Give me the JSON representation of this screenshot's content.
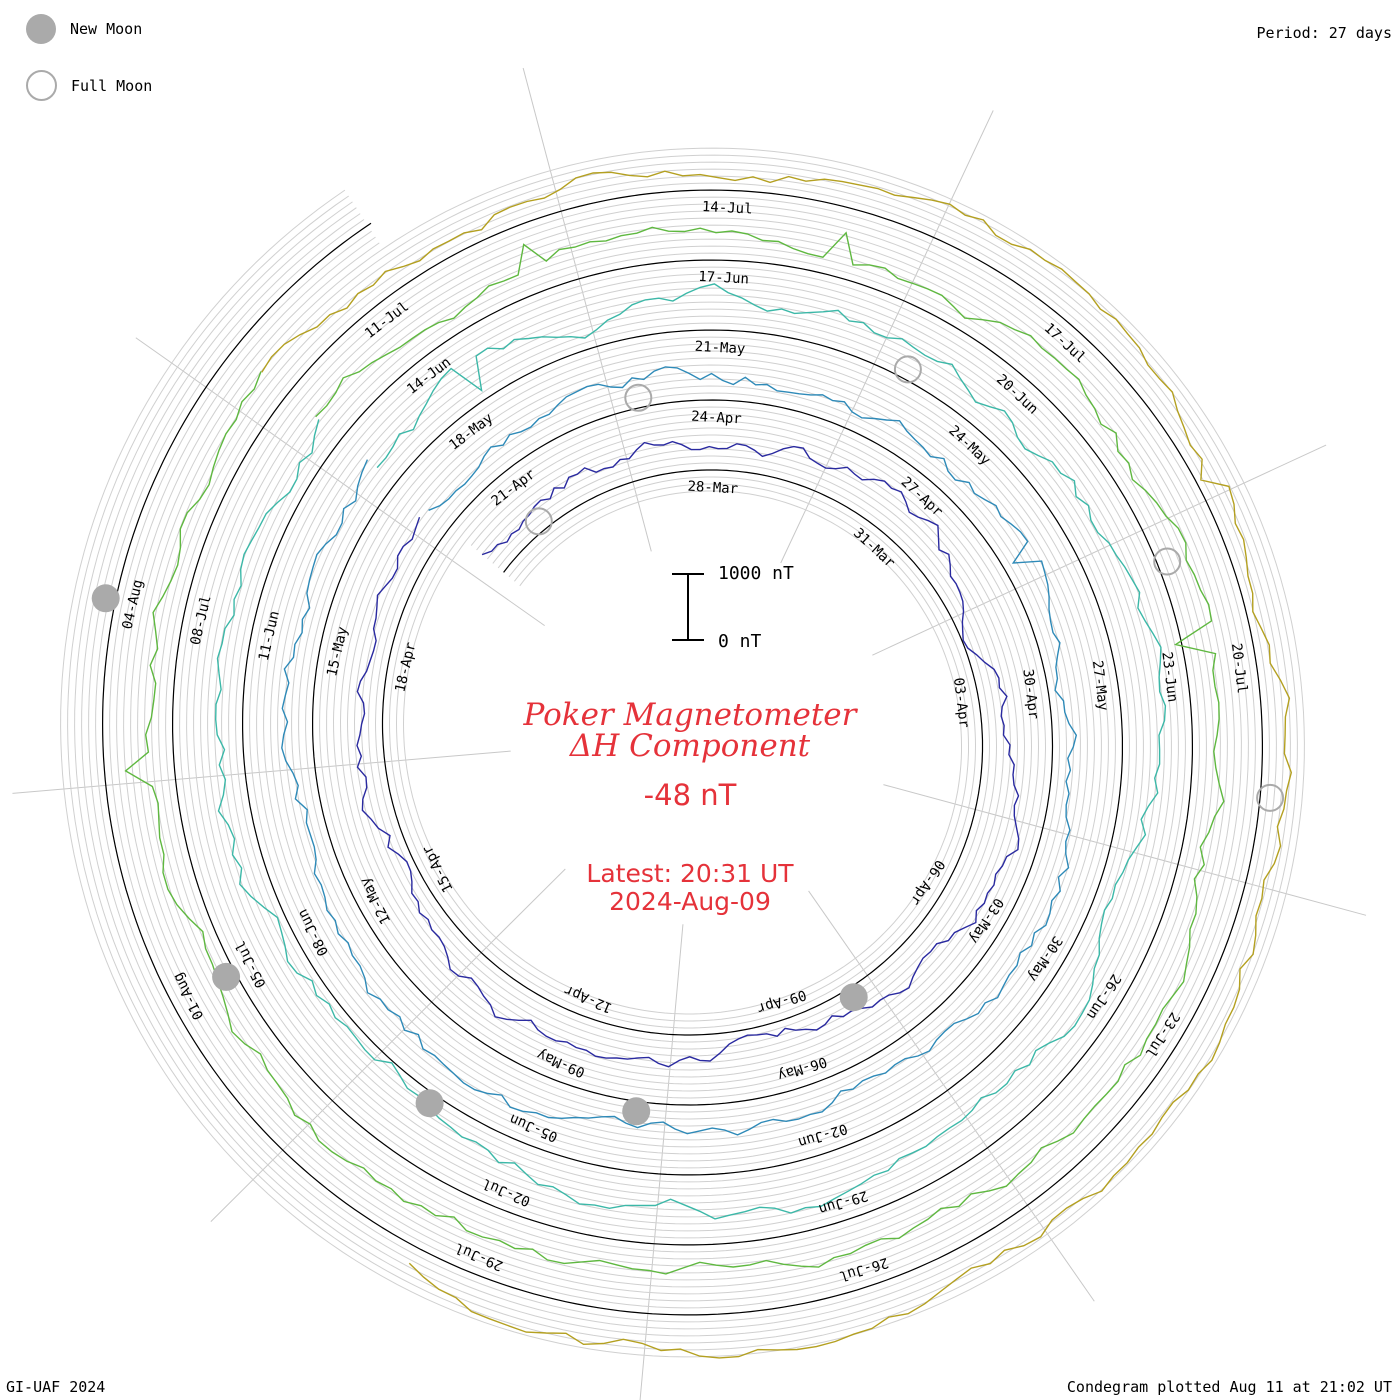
{
  "header": {
    "period": "Period: 27 days",
    "legend": {
      "new_moon": "New Moon",
      "full_moon": "Full Moon"
    }
  },
  "footer": {
    "credit": "GI-UAF 2024",
    "plotted": "Condegram plotted Aug 11 at 21:02 UT"
  },
  "center": {
    "title_line1": "Poker Magnetometer",
    "title_line2": "ΔH Component",
    "current_value": "-48 nT",
    "latest_line1": "Latest: 20:31 UT",
    "latest_line2": "2024-Aug-09"
  },
  "scale_bar": {
    "top_label": "1000 nT",
    "bottom_label": "0 nT"
  },
  "colors": {
    "title": "#e5323a",
    "moon": "#aaaaaa",
    "grid": "#c8c8c8",
    "ring_colors": [
      "#15123a",
      "#2a2aa0",
      "#2e8ab8",
      "#3cb8a8",
      "#5fb840",
      "#b4a020",
      "#c04818"
    ]
  },
  "chart_data": {
    "type": "line",
    "title": "Poker Magnetometer ΔH Component",
    "period_days": 27,
    "units": "nT",
    "current_value_nT": -48,
    "rings": [
      {
        "date_labels": [
          "28-Mar",
          "31-Mar",
          "03-Apr",
          "06-Apr",
          "09-Apr",
          "12-Apr",
          "15-Apr",
          "18-Apr",
          "21-Apr"
        ]
      },
      {
        "date_labels": [
          "24-Apr",
          "27-Apr",
          "30-Apr",
          "03-May",
          "06-May",
          "09-May",
          "12-May",
          "15-May",
          "18-May"
        ]
      },
      {
        "date_labels": [
          "21-May",
          "24-May",
          "27-May",
          "30-May",
          "02-Jun",
          "05-Jun",
          "08-Jun",
          "11-Jun",
          "14-Jun"
        ]
      },
      {
        "date_labels": [
          "17-Jun",
          "20-Jun",
          "23-Jun",
          "26-Jun",
          "29-Jun",
          "02-Jul",
          "05-Jul",
          "08-Jul",
          "11-Jul"
        ]
      },
      {
        "date_labels": [
          "14-Jul",
          "17-Jul",
          "20-Jul",
          "23-Jul",
          "26-Jul",
          "29-Jul",
          "01-Aug",
          "04-Aug"
        ]
      }
    ],
    "new_moons": [
      "2024-04-08",
      "2024-05-08",
      "2024-06-06",
      "2024-07-05",
      "2024-08-04"
    ],
    "full_moons": [
      "2024-03-25",
      "2024-04-23",
      "2024-05-23",
      "2024-06-22",
      "2024-07-21"
    ]
  }
}
